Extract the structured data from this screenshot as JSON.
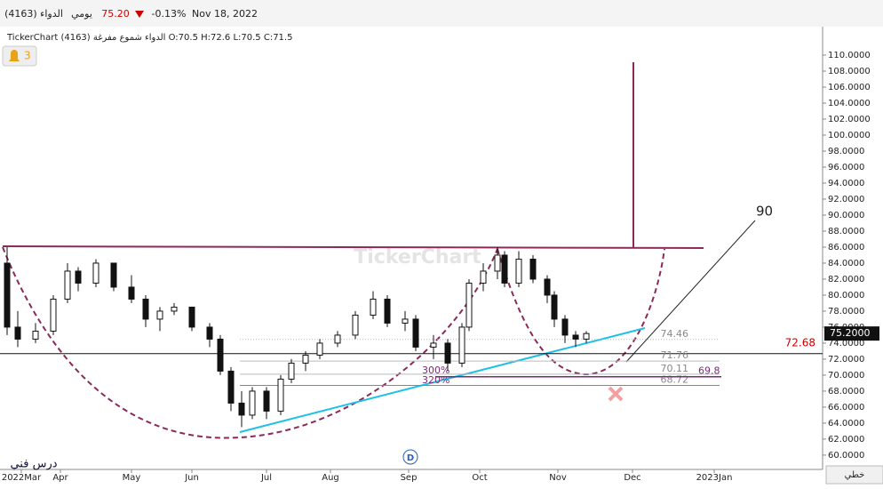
{
  "header": {
    "symbol": "الدواء (4163)",
    "period": "يومي",
    "price": "75.20",
    "change": "-0.13%",
    "date": "Nov 18, 2022",
    "info": "TickerChart الدواء شموع مفرغة (4163) O:70.5 H:72.6 L:70.5 C:71.5",
    "alerts": "3",
    "watermark": "TickerChart",
    "mode": "خطي",
    "author": "درس فني",
    "event": "D"
  },
  "chart_data": {
    "type": "candlestick",
    "x": [
      2,
      5,
      10,
      15,
      19,
      22,
      27,
      32,
      37,
      41,
      45,
      49,
      54,
      59,
      62,
      65,
      68,
      71,
      75,
      79,
      82,
      86,
      90,
      95,
      100,
      105,
      109,
      114,
      117,
      122,
      126,
      130,
      132,
      136,
      140,
      142,
      146,
      150,
      154,
      156,
      159,
      162,
      165
    ],
    "open": [
      84,
      76,
      74.5,
      75.5,
      79.5,
      83,
      81.5,
      84,
      81,
      79.5,
      77,
      78,
      78.5,
      76,
      74.5,
      70.5,
      66.5,
      65,
      68,
      65.5,
      69.5,
      71.5,
      72.5,
      74,
      75,
      77.5,
      79.5,
      76.5,
      77,
      73.5,
      74,
      71.5,
      76,
      81.5,
      83,
      85,
      81.5,
      84.5,
      82,
      80,
      77,
      75,
      74.5
    ],
    "high": [
      86,
      78,
      76.5,
      80,
      84,
      83.5,
      84.5,
      84,
      82.5,
      80,
      78.5,
      79,
      78.5,
      76.5,
      75,
      71,
      68,
      68.5,
      68.5,
      70,
      72,
      73,
      74.5,
      75.5,
      78,
      80.5,
      80,
      78,
      77.5,
      75,
      74.5,
      76.5,
      82,
      84,
      86,
      85.5,
      85.5,
      85,
      82.5,
      80.5,
      77.5,
      75.5,
      75.5
    ],
    "low": [
      75,
      73.5,
      74,
      75,
      79,
      80.5,
      81,
      80.5,
      79,
      76,
      75.5,
      77.5,
      75.5,
      73.5,
      70,
      65.5,
      63.5,
      64.5,
      64.5,
      65,
      69,
      70.5,
      72,
      73.5,
      74.5,
      77,
      76,
      75.5,
      73,
      72,
      70.5,
      71,
      75.5,
      80.5,
      82,
      81,
      81,
      81.5,
      79,
      76,
      74,
      73.5,
      74
    ],
    "close": [
      76,
      74.5,
      75.5,
      79.5,
      83,
      81.5,
      84,
      81,
      79.5,
      77,
      78,
      78.5,
      76,
      74.5,
      70.5,
      66.5,
      65,
      68,
      65.5,
      69.5,
      71.5,
      72.5,
      74,
      75,
      77.5,
      79.5,
      76.5,
      77,
      73.5,
      74,
      71.5,
      76,
      81.5,
      83,
      85,
      81.5,
      84.5,
      82,
      80,
      77,
      75,
      74.5,
      75.2
    ],
    "xlim": [
      0,
      231
    ],
    "xticks": [
      {
        "value": 6,
        "label": "2022Mar"
      },
      {
        "value": 17,
        "label": "Apr"
      },
      {
        "value": 37,
        "label": "May"
      },
      {
        "value": 54,
        "label": "Jun"
      },
      {
        "value": 75,
        "label": "Jul"
      },
      {
        "value": 93,
        "label": "Aug"
      },
      {
        "value": 115,
        "label": "Sep"
      },
      {
        "value": 135,
        "label": "Oct"
      },
      {
        "value": 157,
        "label": "Nov"
      },
      {
        "value": 178,
        "label": "Dec"
      },
      {
        "value": 201,
        "label": "2023Jan"
      }
    ],
    "ylim": [
      59.1,
      113
    ],
    "yticks": [
      {
        "value": 60,
        "label": "60.0000"
      },
      {
        "value": 62,
        "label": "62.0000"
      },
      {
        "value": 64,
        "label": "64.0000"
      },
      {
        "value": 66,
        "label": "66.0000"
      },
      {
        "value": 68,
        "label": "68.0000"
      },
      {
        "value": 70,
        "label": "70.0000"
      },
      {
        "value": 72,
        "label": "72.0000"
      },
      {
        "value": 74,
        "label": "74.0000"
      },
      {
        "value": 76,
        "label": "76.0000"
      },
      {
        "value": 78,
        "label": "78.0000"
      },
      {
        "value": 80,
        "label": "80.0000"
      },
      {
        "value": 82,
        "label": "82.0000"
      },
      {
        "value": 84,
        "label": "84.0000"
      },
      {
        "value": 86,
        "label": "86.0000"
      },
      {
        "value": 88,
        "label": "88.0000"
      },
      {
        "value": 90,
        "label": "90.0000"
      },
      {
        "value": 92,
        "label": "92.0000"
      },
      {
        "value": 94,
        "label": "94.0000"
      },
      {
        "value": 96,
        "label": "96.0000"
      },
      {
        "value": 98,
        "label": "98.0000"
      },
      {
        "value": 100,
        "label": "100.0000"
      },
      {
        "value": 102,
        "label": "102.0000"
      },
      {
        "value": 104,
        "label": "104.0000"
      },
      {
        "value": 106,
        "label": "106.0000"
      },
      {
        "value": 108,
        "label": "108.0000"
      },
      {
        "value": 110,
        "label": "110.0000"
      }
    ],
    "last_price": {
      "value": 75.2,
      "label": "75.2000"
    },
    "support": 72.68,
    "fib_levels": [
      74.46,
      71.76,
      70.11,
      68.72
    ],
    "fib_target": 69.8,
    "fib_ratios": [
      "300%",
      "320%"
    ],
    "target": 90,
    "up_color": "#ffffff",
    "down_color": "#111111"
  }
}
